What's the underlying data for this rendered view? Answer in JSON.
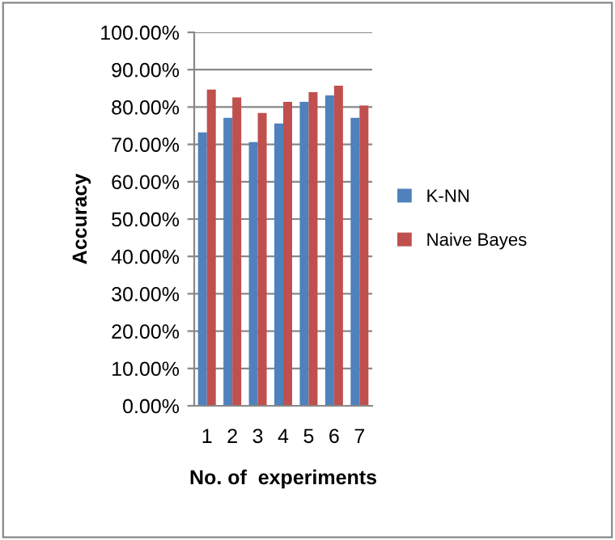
{
  "chart_data": {
    "type": "bar",
    "xlabel": "No. of  experiments",
    "ylabel": "Accuracy",
    "categories": [
      "1",
      "2",
      "3",
      "4",
      "5",
      "6",
      "7"
    ],
    "series": [
      {
        "name": "K-NN",
        "color": "#4f81bd",
        "values": [
          73.2,
          77.1,
          70.6,
          75.6,
          81.4,
          83.1,
          77.1
        ]
      },
      {
        "name": "Naive Bayes",
        "color": "#c0504d",
        "values": [
          84.7,
          82.6,
          78.4,
          81.4,
          84.0,
          85.7,
          80.4
        ]
      }
    ],
    "ylim": [
      0,
      100
    ],
    "yticks": [
      {
        "value": 0,
        "label": "0.00%"
      },
      {
        "value": 10,
        "label": "10.00%"
      },
      {
        "value": 20,
        "label": "20.00%"
      },
      {
        "value": 30,
        "label": "30.00%"
      },
      {
        "value": 40,
        "label": "40.00%"
      },
      {
        "value": 50,
        "label": "50.00%"
      },
      {
        "value": 60,
        "label": "60.00%"
      },
      {
        "value": 70,
        "label": "70.00%"
      },
      {
        "value": 80,
        "label": "80.00%"
      },
      {
        "value": 90,
        "label": "90.00%"
      },
      {
        "value": 100,
        "label": "100.00%"
      }
    ],
    "grid": "y",
    "legend": "right"
  }
}
